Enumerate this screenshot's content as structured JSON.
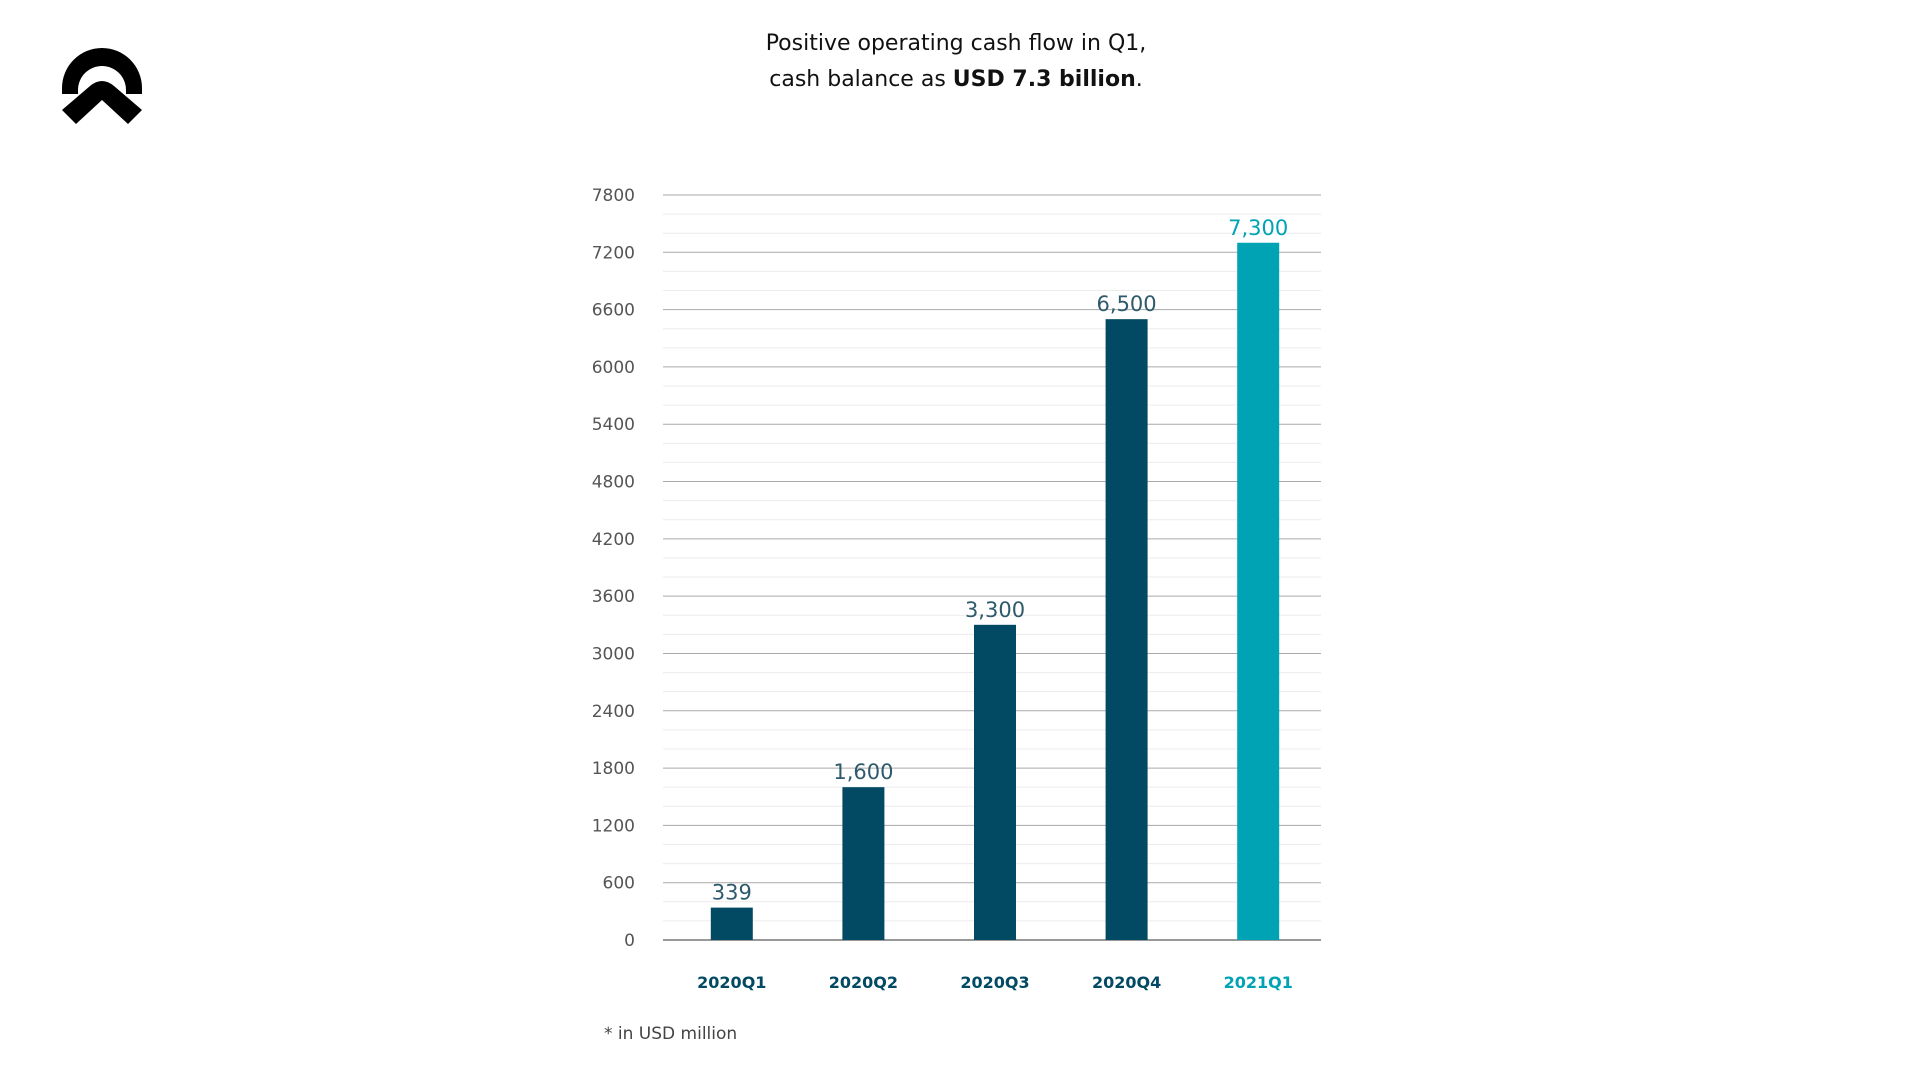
{
  "header": {
    "title_line1": "Positive operating cash flow in Q1,",
    "title_line2_prefix": "cash balance as ",
    "title_line2_bold": "USD 7.3 billion",
    "title_line2_suffix": "."
  },
  "logo": {
    "icon": "nio-logo"
  },
  "footnote": "* in USD million",
  "colors": {
    "bar": "#024a63",
    "highlight": "#00a3b4",
    "axis_text": "#555555"
  },
  "chart_data": {
    "type": "bar",
    "categories": [
      "2020Q1",
      "2020Q2",
      "2020Q3",
      "2020Q4",
      "2021Q1"
    ],
    "values": [
      339,
      1600,
      3300,
      6500,
      7300
    ],
    "data_labels": [
      "339",
      "1,600",
      "3,300",
      "6,500",
      "7,300"
    ],
    "highlighted": [
      "2021Q1"
    ],
    "ylim": [
      0,
      7800
    ],
    "yticks": [
      0,
      600,
      1200,
      1800,
      2400,
      3000,
      3600,
      4200,
      4800,
      5400,
      6000,
      6600,
      7200,
      7800
    ],
    "grid": true,
    "xlabel": "",
    "ylabel": ""
  }
}
